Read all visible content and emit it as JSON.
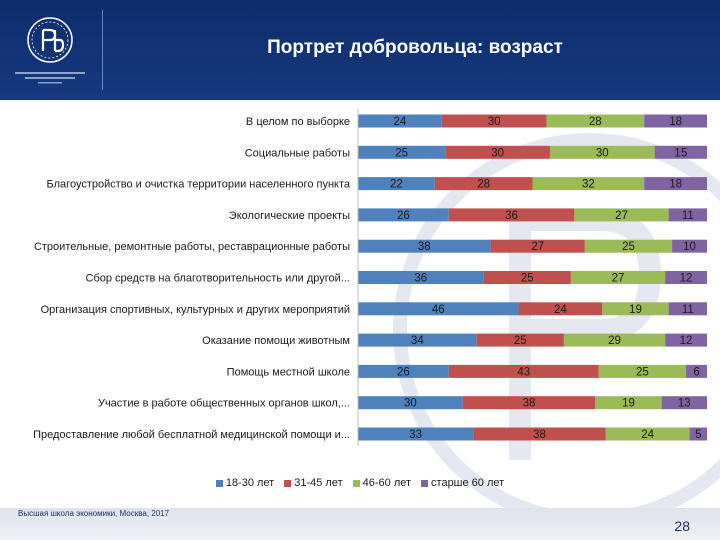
{
  "header": {
    "title": "Портрет добровольца: возраст"
  },
  "footer": {
    "text": "Высшая школа экономики, Москва, 2017",
    "page_number": "28"
  },
  "colors": {
    "header_bg": "#16397e",
    "series": [
      "#4f81bd",
      "#c0504d",
      "#9bbb59",
      "#8064a2"
    ]
  },
  "chart_data": {
    "type": "bar",
    "orientation": "horizontal",
    "stacked": true,
    "percent_stacked": true,
    "categories": [
      "В целом по выборке",
      "Социальные работы",
      "Благоустройство и очистка территории населенного пункта",
      "Экологические проекты",
      "Строительные, ремонтные работы, реставрационные работы",
      "Сбор средств на благотворительность или другой...",
      "Организация спортивных, культурных и других мероприятий",
      "Оказание помощи животным",
      "Помощь местной школе",
      "Участие в работе общественных органов школ,...",
      "Предоставление любой бесплатной медицинской помощи и..."
    ],
    "series": [
      {
        "name": "18-30 лет",
        "color": "#4f81bd",
        "values": [
          24,
          25,
          22,
          26,
          38,
          36,
          46,
          34,
          26,
          30,
          33
        ]
      },
      {
        "name": "31-45 лет",
        "color": "#c0504d",
        "values": [
          30,
          30,
          28,
          36,
          27,
          25,
          24,
          25,
          43,
          38,
          38
        ]
      },
      {
        "name": "46-60 лет",
        "color": "#9bbb59",
        "values": [
          28,
          30,
          32,
          27,
          25,
          27,
          19,
          29,
          25,
          19,
          24
        ]
      },
      {
        "name": "старше 60 лет",
        "color": "#8064a2",
        "values": [
          18,
          15,
          18,
          11,
          10,
          12,
          11,
          12,
          6,
          13,
          5
        ]
      }
    ],
    "legend_position": "bottom",
    "grid": false
  }
}
